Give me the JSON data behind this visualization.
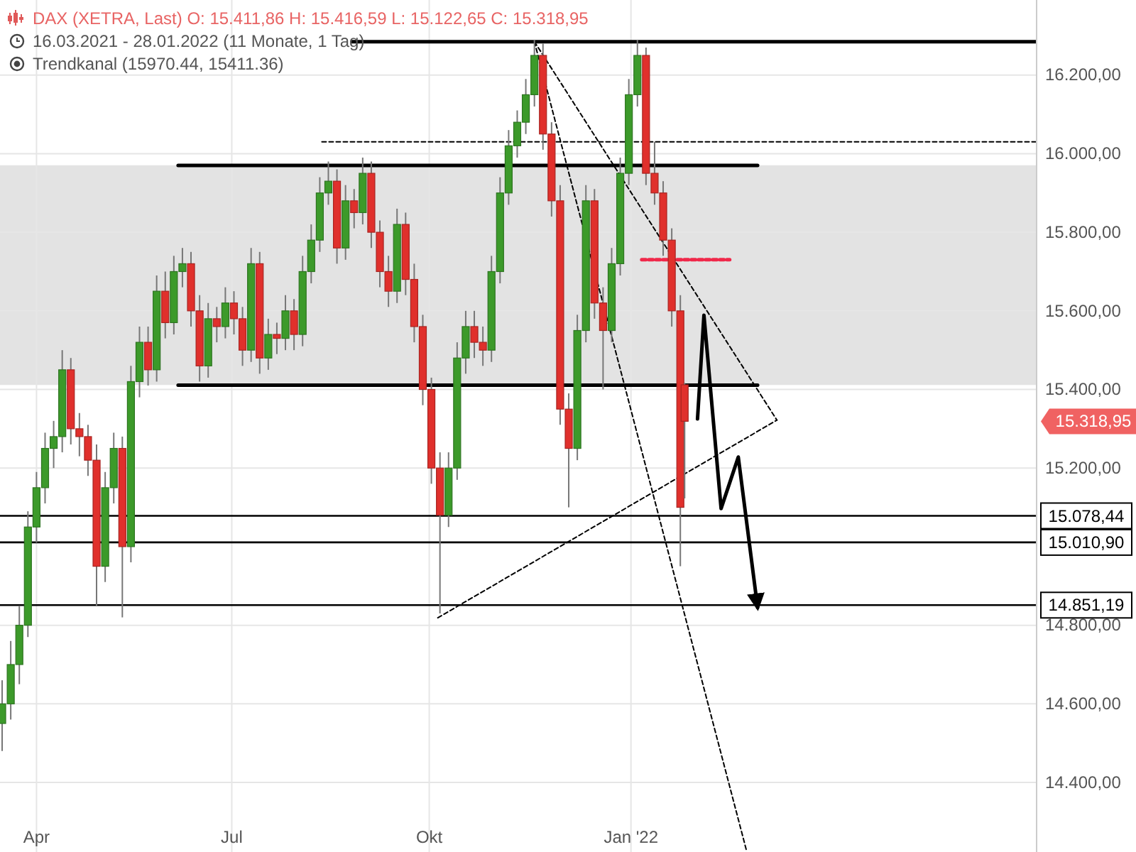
{
  "chart_data": {
    "type": "candlestick",
    "title": "DAX (XETRA, Last)  O: 15.411,86  H: 15.416,59  L: 15.122,65  C: 15.318,95",
    "subtitle": "16.03.2021 - 28.01.2022  (11 Monate, 1 Tag)",
    "annotations": [
      "Trendkanal  (15970.44, 15411.36)",
      "15.318,95"
    ],
    "x": [
      "2021-03-16",
      "2021-03-20",
      "2021-03-24",
      "2021-03-28",
      "2021-04-01",
      "2021-04-05",
      "2021-04-09",
      "2021-04-13",
      "2021-04-17",
      "2021-04-21",
      "2021-04-25",
      "2021-04-29",
      "2021-05-03",
      "2021-05-07",
      "2021-05-11",
      "2021-05-15",
      "2021-05-19",
      "2021-05-23",
      "2021-05-27",
      "2021-05-31",
      "2021-06-04",
      "2021-06-08",
      "2021-06-12",
      "2021-06-16",
      "2021-06-20",
      "2021-06-24",
      "2021-06-28",
      "2021-07-02",
      "2021-07-06",
      "2021-07-10",
      "2021-07-14",
      "2021-07-18",
      "2021-07-22",
      "2021-07-26",
      "2021-07-30",
      "2021-08-03",
      "2021-08-07",
      "2021-08-11",
      "2021-08-15",
      "2021-08-19",
      "2021-08-23",
      "2021-08-27",
      "2021-08-31",
      "2021-09-04",
      "2021-09-08",
      "2021-09-12",
      "2021-09-16",
      "2021-09-20",
      "2021-09-24",
      "2021-09-28",
      "2021-10-02",
      "2021-10-06",
      "2021-10-10",
      "2021-10-14",
      "2021-10-18",
      "2021-10-22",
      "2021-10-26",
      "2021-10-30",
      "2021-11-03",
      "2021-11-07",
      "2021-11-11",
      "2021-11-15",
      "2021-11-19",
      "2021-11-23",
      "2021-11-27",
      "2021-12-01",
      "2021-12-05",
      "2021-12-09",
      "2021-12-13",
      "2021-12-17",
      "2021-12-21",
      "2021-12-25",
      "2021-12-29",
      "2022-01-02",
      "2022-01-06",
      "2022-01-10",
      "2022-01-14",
      "2022-01-18",
      "2022-01-22",
      "2022-01-26",
      "2022-01-28"
    ],
    "ohlc": [
      [
        14550,
        14660,
        14480,
        14600
      ],
      [
        14600,
        14760,
        14560,
        14700
      ],
      [
        14700,
        14850,
        14650,
        14800
      ],
      [
        14800,
        15090,
        14770,
        15050
      ],
      [
        15050,
        15190,
        15010,
        15150
      ],
      [
        15150,
        15290,
        15110,
        15250
      ],
      [
        15250,
        15320,
        15200,
        15280
      ],
      [
        15280,
        15500,
        15240,
        15450
      ],
      [
        15450,
        15480,
        15260,
        15300
      ],
      [
        15300,
        15340,
        15230,
        15280
      ],
      [
        15280,
        15310,
        15180,
        15220
      ],
      [
        15220,
        15260,
        14850,
        14950
      ],
      [
        14950,
        15190,
        14910,
        15150
      ],
      [
        15150,
        15290,
        15110,
        15250
      ],
      [
        15250,
        15280,
        14820,
        15000
      ],
      [
        15000,
        15460,
        14960,
        15420
      ],
      [
        15420,
        15560,
        15380,
        15520
      ],
      [
        15520,
        15560,
        15410,
        15450
      ],
      [
        15450,
        15690,
        15420,
        15650
      ],
      [
        15650,
        15700,
        15530,
        15570
      ],
      [
        15570,
        15740,
        15540,
        15700
      ],
      [
        15700,
        15760,
        15660,
        15720
      ],
      [
        15720,
        15750,
        15560,
        15600
      ],
      [
        15600,
        15640,
        15420,
        15460
      ],
      [
        15460,
        15620,
        15430,
        15580
      ],
      [
        15580,
        15610,
        15520,
        15560
      ],
      [
        15560,
        15660,
        15530,
        15620
      ],
      [
        15620,
        15650,
        15540,
        15580
      ],
      [
        15580,
        15610,
        15460,
        15500
      ],
      [
        15500,
        15760,
        15470,
        15720
      ],
      [
        15720,
        15750,
        15440,
        15480
      ],
      [
        15480,
        15580,
        15450,
        15540
      ],
      [
        15540,
        15570,
        15490,
        15530
      ],
      [
        15530,
        15640,
        15500,
        15600
      ],
      [
        15600,
        15630,
        15500,
        15540
      ],
      [
        15540,
        15740,
        15510,
        15700
      ],
      [
        15700,
        15820,
        15670,
        15780
      ],
      [
        15780,
        15940,
        15750,
        15900
      ],
      [
        15900,
        15980,
        15870,
        15930
      ],
      [
        15930,
        15960,
        15720,
        15760
      ],
      [
        15760,
        15920,
        15730,
        15880
      ],
      [
        15880,
        15910,
        15810,
        15850
      ],
      [
        15850,
        15990,
        15820,
        15950
      ],
      [
        15950,
        15980,
        15760,
        15800
      ],
      [
        15800,
        15830,
        15660,
        15700
      ],
      [
        15700,
        15740,
        15610,
        15650
      ],
      [
        15650,
        15860,
        15620,
        15820
      ],
      [
        15820,
        15850,
        15640,
        15680
      ],
      [
        15680,
        15720,
        15520,
        15560
      ],
      [
        15560,
        15590,
        15360,
        15400
      ],
      [
        15400,
        15430,
        15160,
        15200
      ],
      [
        15200,
        15240,
        14830,
        15080
      ],
      [
        15080,
        15240,
        15050,
        15200
      ],
      [
        15200,
        15520,
        15170,
        15480
      ],
      [
        15480,
        15600,
        15440,
        15560
      ],
      [
        15560,
        15600,
        15480,
        15520
      ],
      [
        15520,
        15560,
        15460,
        15500
      ],
      [
        15500,
        15740,
        15470,
        15700
      ],
      [
        15700,
        15940,
        15670,
        15900
      ],
      [
        15900,
        16060,
        15870,
        16020
      ],
      [
        16020,
        16110,
        15990,
        16080
      ],
      [
        16080,
        16190,
        16050,
        16150
      ],
      [
        16150,
        16290,
        16120,
        16250
      ],
      [
        16250,
        16280,
        16010,
        16050
      ],
      [
        16050,
        16080,
        15840,
        15880
      ],
      [
        15880,
        15920,
        15310,
        15350
      ],
      [
        15350,
        15390,
        15100,
        15250
      ],
      [
        15250,
        15590,
        15220,
        15550
      ],
      [
        15550,
        15920,
        15520,
        15880
      ],
      [
        15880,
        15910,
        15580,
        15620
      ],
      [
        15620,
        15660,
        15400,
        15550
      ],
      [
        15550,
        15760,
        15520,
        15720
      ],
      [
        15720,
        15990,
        15690,
        15950
      ],
      [
        15950,
        16190,
        15920,
        16150
      ],
      [
        16150,
        16290,
        16120,
        16250
      ],
      [
        16250,
        16270,
        15920,
        15950
      ],
      [
        15950,
        16030,
        15870,
        15900
      ],
      [
        15900,
        15930,
        15740,
        15780
      ],
      [
        15780,
        15810,
        15560,
        15600
      ],
      [
        15600,
        15640,
        14950,
        15100
      ],
      [
        15411.86,
        15416.59,
        15122.65,
        15318.95
      ]
    ],
    "colors": [
      "#3c9a2a",
      "#3c9a2a",
      "#3c9a2a",
      "#3c9a2a",
      "#3c9a2a",
      "#3c9a2a",
      "#3c9a2a",
      "#3c9a2a",
      "#e0302c",
      "#e0302c",
      "#e0302c",
      "#e0302c",
      "#3c9a2a",
      "#3c9a2a",
      "#e0302c",
      "#3c9a2a",
      "#3c9a2a",
      "#e0302c",
      "#3c9a2a",
      "#e0302c",
      "#3c9a2a",
      "#3c9a2a",
      "#e0302c",
      "#e0302c",
      "#3c9a2a",
      "#e0302c",
      "#3c9a2a",
      "#e0302c",
      "#e0302c",
      "#3c9a2a",
      "#e0302c",
      "#3c9a2a",
      "#e0302c",
      "#3c9a2a",
      "#e0302c",
      "#3c9a2a",
      "#3c9a2a",
      "#3c9a2a",
      "#3c9a2a",
      "#e0302c",
      "#3c9a2a",
      "#e0302c",
      "#3c9a2a",
      "#e0302c",
      "#e0302c",
      "#e0302c",
      "#3c9a2a",
      "#e0302c",
      "#e0302c",
      "#e0302c",
      "#e0302c",
      "#e0302c",
      "#3c9a2a",
      "#3c9a2a",
      "#3c9a2a",
      "#e0302c",
      "#e0302c",
      "#3c9a2a",
      "#3c9a2a",
      "#3c9a2a",
      "#3c9a2a",
      "#3c9a2a",
      "#3c9a2a",
      "#e0302c",
      "#e0302c",
      "#e0302c",
      "#e0302c",
      "#3c9a2a",
      "#3c9a2a",
      "#e0302c",
      "#e0302c",
      "#3c9a2a",
      "#3c9a2a",
      "#3c9a2a",
      "#3c9a2a",
      "#e0302c",
      "#e0302c",
      "#e0302c",
      "#e0302c",
      "#e0302c",
      "#e0302c"
    ],
    "series": [
      {
        "type": "line",
        "x": [
          "2021-06-06",
          "2022-03-03"
        ],
        "values": [
          15970,
          15970
        ],
        "color": "#000000",
        "line_style": "solid"
      },
      {
        "type": "line",
        "x": [
          "2021-06-06",
          "2022-03-03"
        ],
        "values": [
          15411,
          15411
        ],
        "color": "#000000",
        "line_style": "solid"
      },
      {
        "type": "line",
        "x": [
          "2021-08-26",
          "2022-07-11"
        ],
        "values": [
          16285,
          16285
        ],
        "color": "#000000",
        "line_style": "solid"
      },
      {
        "type": "line",
        "x": [
          "2021-08-12",
          "2022-07-11"
        ],
        "values": [
          16030,
          16030
        ],
        "color": "#000000",
        "line_style": "dashed"
      },
      {
        "type": "line",
        "x": [
          "2021-11-19",
          "2022-03-12"
        ],
        "values": [
          16285,
          15322
        ],
        "color": "#000000",
        "line_style": "dashed"
      },
      {
        "type": "line",
        "x": [
          "2021-11-19",
          "2022-02-26"
        ],
        "values": [
          16285,
          14223
        ],
        "color": "#000000",
        "line_style": "dashed"
      },
      {
        "type": "line",
        "x": [
          "2021-10-05",
          "2022-03-12"
        ],
        "values": [
          14819,
          15322
        ],
        "color": "#000000",
        "line_style": "dashed"
      },
      {
        "type": "line",
        "x": [
          "2022-01-08",
          "2022-02-18"
        ],
        "values": [
          15730,
          15730
        ],
        "color": "#f0284a",
        "line_style": "dashed"
      },
      {
        "type": "line",
        "x": [
          "2022-02-03",
          "2022-02-06",
          "2022-02-14",
          "2022-02-22",
          "2022-03-03"
        ],
        "values": [
          15325,
          15589,
          15097,
          15228,
          14845
        ],
        "color": "#000000",
        "line_style": "solid"
      }
    ],
    "bands": [
      {
        "axis": "y",
        "from": 15411.36,
        "to": 15970.44,
        "color": "#e3e3e3"
      }
    ],
    "ref_lines": [
      {
        "axis": "y",
        "value": 15078.44,
        "label": "15.078,44"
      },
      {
        "axis": "y",
        "value": 15010.9,
        "label": "15.010,90"
      },
      {
        "axis": "y",
        "value": 14851.19,
        "label": "14.851,19"
      }
    ],
    "xlim": [
      "2021-03-15",
      "2022-07-11"
    ],
    "xticks": [
      {
        "value": "2021-04-01",
        "label": "Apr"
      },
      {
        "value": "2021-07-01",
        "label": "Jul"
      },
      {
        "value": "2021-10-01",
        "label": "Okt"
      },
      {
        "value": "2022-01-03",
        "label": "Jan '22"
      }
    ],
    "ylim": [
      14223,
      16391
    ],
    "yticks": [
      {
        "value": 14400,
        "label": "14.400,00"
      },
      {
        "value": 14600,
        "label": "14.600,00"
      },
      {
        "value": 14800,
        "label": "14.800,00"
      },
      {
        "value": 15200,
        "label": "15.200,00"
      },
      {
        "value": 15400,
        "label": "15.400,00"
      },
      {
        "value": 15600,
        "label": "15.600,00"
      },
      {
        "value": 15800,
        "label": "15.800,00"
      },
      {
        "value": 16000,
        "label": "16.000,00"
      },
      {
        "value": 16200,
        "label": "16.200,00"
      }
    ],
    "grid": true
  }
}
